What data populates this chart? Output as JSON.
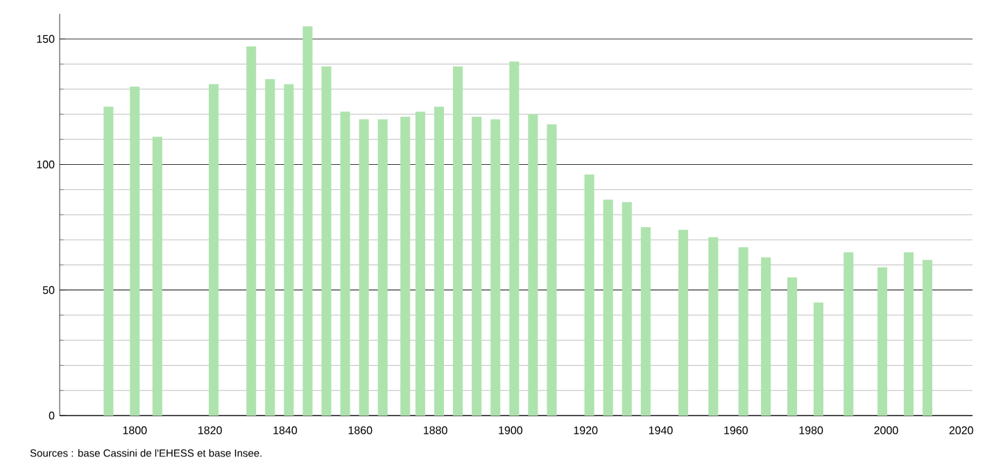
{
  "chart_data": {
    "type": "bar",
    "color": "#aee3ae",
    "x": [
      1793,
      1800,
      1806,
      1821,
      1831,
      1836,
      1841,
      1846,
      1851,
      1856,
      1861,
      1866,
      1872,
      1876,
      1881,
      1886,
      1891,
      1896,
      1901,
      1906,
      1911,
      1921,
      1926,
      1931,
      1936,
      1946,
      1954,
      1962,
      1968,
      1975,
      1982,
      1990,
      1999,
      2006,
      2011
    ],
    "values": [
      123,
      131,
      111,
      132,
      147,
      134,
      132,
      155,
      139,
      121,
      118,
      118,
      119,
      121,
      123,
      139,
      119,
      118,
      141,
      120,
      116,
      96,
      86,
      85,
      75,
      74,
      71,
      67,
      63,
      55,
      45,
      65,
      59,
      65,
      62
    ],
    "xlim": [
      1780,
      2023
    ],
    "xticks": [
      1800,
      1820,
      1840,
      1860,
      1880,
      1900,
      1920,
      1940,
      1960,
      1980,
      2000,
      2020
    ],
    "ylim": [
      0,
      160
    ],
    "yticks": [
      0,
      50,
      100,
      150
    ],
    "grid": "y",
    "annotations": [
      "Sources : base Cassini de l'EHESS et base Insee."
    ]
  }
}
